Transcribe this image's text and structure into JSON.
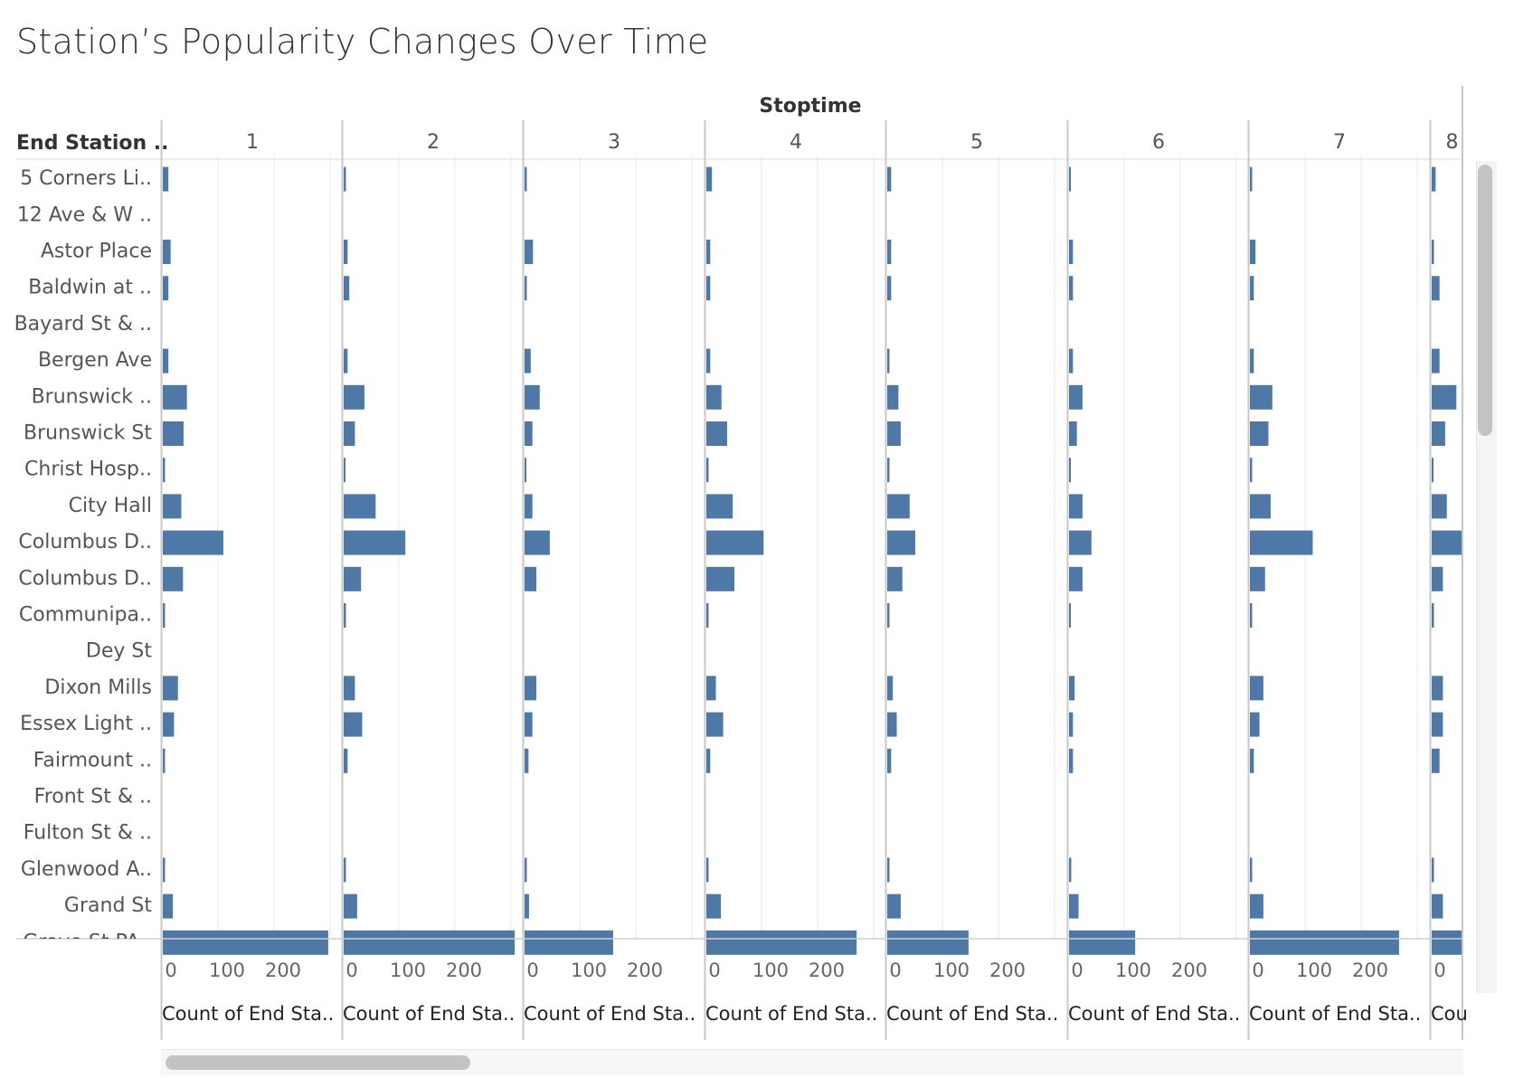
{
  "title": "Station’s Popularity Changes Over Time",
  "column_header": "Stoptime",
  "row_header": "End Station ..",
  "x_axis_label": "Count of End Sta..",
  "x_axis_label_truncated": "Cou",
  "colors": {
    "bar": "#4e79a7",
    "grid": "#e9e9e9",
    "divider": "#c8c8c8"
  },
  "chart_data": {
    "type": "bar",
    "orientation": "horizontal",
    "title": "Station’s Popularity Changes Over Time",
    "column_field": "Stoptime",
    "row_field": "End Station ..",
    "xlabel": "Count of End Sta..",
    "xlim": [
      0,
      300
    ],
    "x_ticks": [
      "0",
      "100",
      "200"
    ],
    "panels": [
      "1",
      "2",
      "3",
      "4",
      "5",
      "6",
      "7",
      "8"
    ],
    "stations": [
      "5 Corners Li..",
      "12 Ave & W ..",
      "Astor Place",
      "Baldwin at ..",
      "Bayard St & ..",
      "Bergen Ave",
      "Brunswick ..",
      "Brunswick St",
      "Christ Hosp..",
      "City Hall",
      "Columbus D..",
      "Columbus D..",
      "Communipa..",
      "Dey St",
      "Dixon Mills",
      "Essex Light ..",
      "Fairmount ..",
      "Front St & ..",
      "Fulton St & ..",
      "Glenwood A..",
      "Grand St",
      "Grove St PA.."
    ],
    "series": [
      {
        "panel": "1",
        "values": [
          10,
          0,
          14,
          10,
          0,
          10,
          43,
          37,
          4,
          33,
          108,
          36,
          4,
          0,
          27,
          20,
          4,
          0,
          0,
          4,
          18,
          295
        ]
      },
      {
        "panel": "2",
        "values": [
          4,
          0,
          7,
          10,
          0,
          7,
          37,
          20,
          3,
          57,
          110,
          31,
          4,
          0,
          20,
          33,
          7,
          0,
          0,
          4,
          24,
          305
        ]
      },
      {
        "panel": "3",
        "values": [
          4,
          0,
          15,
          4,
          0,
          11,
          27,
          14,
          2,
          14,
          45,
          21,
          0,
          0,
          21,
          14,
          7,
          0,
          0,
          4,
          8,
          158
        ]
      },
      {
        "panel": "4",
        "values": [
          10,
          0,
          7,
          7,
          0,
          7,
          27,
          37,
          4,
          47,
          102,
          50,
          4,
          0,
          17,
          30,
          7,
          0,
          0,
          4,
          26,
          268
        ]
      },
      {
        "panel": "5",
        "values": [
          7,
          0,
          7,
          7,
          0,
          4,
          20,
          24,
          4,
          40,
          50,
          27,
          4,
          0,
          10,
          17,
          7,
          0,
          0,
          4,
          24,
          145
        ]
      },
      {
        "panel": "6",
        "values": [
          2,
          0,
          7,
          7,
          0,
          7,
          24,
          14,
          2,
          24,
          40,
          24,
          2,
          0,
          10,
          7,
          7,
          0,
          0,
          4,
          17,
          118
        ]
      },
      {
        "panel": "7",
        "values": [
          4,
          0,
          10,
          7,
          0,
          7,
          40,
          33,
          4,
          37,
          112,
          27,
          4,
          0,
          24,
          17,
          7,
          0,
          0,
          4,
          24,
          266
        ]
      },
      {
        "panel": "8",
        "values": [
          7,
          0,
          4,
          14,
          0,
          14,
          44,
          24,
          2,
          27,
          60,
          20,
          4,
          0,
          20,
          20,
          14,
          0,
          0,
          4,
          20,
          60
        ]
      }
    ]
  }
}
